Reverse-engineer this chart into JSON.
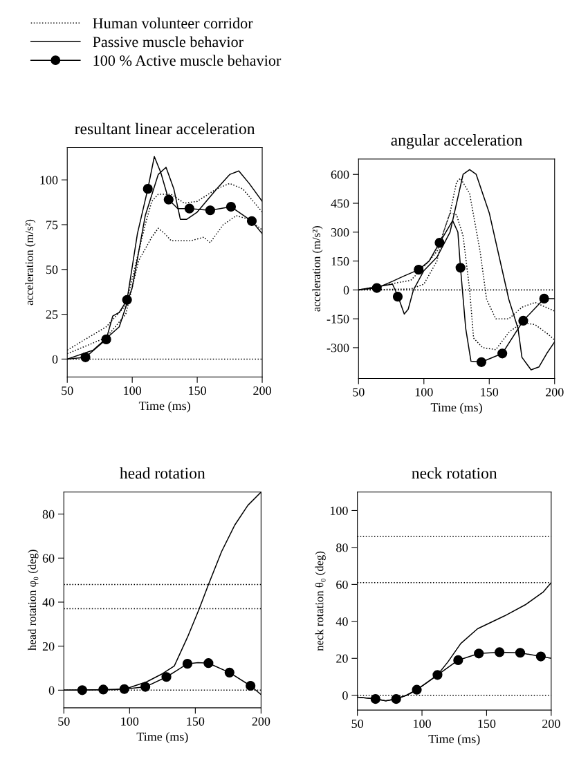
{
  "chart_data": [
    {
      "type": "line",
      "title": "resultant linear acceleration",
      "xlabel": "Time (ms)",
      "ylabel": "acceleration (m/s²)",
      "xlim": [
        50,
        200
      ],
      "xticks": [
        50,
        100,
        150,
        200
      ],
      "ylim": [
        -10,
        118
      ],
      "yticks": [
        0,
        25,
        50,
        75,
        100
      ],
      "grid": false,
      "legend": "top left",
      "ref_lines": [
        {
          "axis": "y",
          "value": 0,
          "color": "#000000",
          "line_style": "dotted"
        }
      ],
      "series": [
        {
          "name": "Human volunteer corridor",
          "color": "#000000",
          "line_style": "dotted",
          "x": [
            50,
            80,
            95,
            110,
            115,
            120,
            130,
            140,
            150,
            165,
            175,
            185,
            200
          ],
          "values": [
            5,
            18,
            30,
            75,
            88,
            92,
            92,
            87,
            88,
            95,
            98,
            95,
            82
          ]
        },
        {
          "color": "#000000",
          "line_style": "dotted",
          "x": [
            50,
            80,
            95,
            105,
            115,
            120,
            125,
            130,
            145,
            155,
            160,
            170,
            180,
            190,
            200
          ],
          "values": [
            3,
            12,
            25,
            55,
            68,
            73,
            70,
            66,
            66,
            68,
            65,
            75,
            80,
            78,
            72
          ]
        },
        {
          "name": "Passive muscle behavior",
          "color": "#000000",
          "line_style": "solid",
          "x": [
            50,
            70,
            90,
            100,
            110,
            120,
            126,
            132,
            137,
            142,
            150,
            165,
            175,
            182,
            190,
            200
          ],
          "values": [
            0,
            5,
            18,
            40,
            80,
            103,
            107,
            95,
            78,
            78,
            82,
            95,
            103,
            105,
            98,
            88
          ]
        },
        {
          "name": "100 % Active muscle behavior",
          "color": "#000000",
          "line_style": "solid",
          "x": [
            50,
            64,
            80,
            85,
            90,
            96,
            104,
            112,
            117,
            122,
            128,
            135,
            144,
            160,
            176,
            192,
            200
          ],
          "values": [
            0,
            1,
            11,
            24,
            26,
            33,
            70,
            95,
            113,
            104,
            89,
            84,
            84,
            83,
            85,
            77,
            70
          ]
        },
        {
          "type": "scatter",
          "color": "#000000",
          "marker": "circle",
          "x": [
            64,
            80,
            96,
            112,
            128,
            144,
            160,
            176,
            192
          ],
          "values": [
            1,
            11,
            33,
            95,
            89,
            84,
            83,
            85,
            77
          ]
        }
      ]
    },
    {
      "type": "line",
      "title": "angular acceleration",
      "xlabel": "Time (ms)",
      "ylabel": "acceleration (m/s²)",
      "xlim": [
        50,
        200
      ],
      "xticks": [
        50,
        100,
        150,
        200
      ],
      "ylim": [
        -460,
        680
      ],
      "yticks": [
        -300,
        -150,
        0,
        150,
        300,
        450,
        600
      ],
      "grid": false,
      "ref_lines": [
        {
          "axis": "y",
          "value": 0,
          "color": "#000000",
          "line_style": "dotted"
        }
      ],
      "series": [
        {
          "color": "#000000",
          "line_style": "dotted",
          "x": [
            50,
            90,
            100,
            110,
            120,
            125,
            128,
            135,
            143,
            148,
            155,
            165,
            175,
            185,
            200
          ],
          "values": [
            0,
            50,
            120,
            200,
            400,
            560,
            580,
            500,
            200,
            -50,
            -150,
            -150,
            -90,
            -65,
            -110
          ]
        },
        {
          "color": "#000000",
          "line_style": "dotted",
          "x": [
            50,
            90,
            100,
            110,
            115,
            120,
            125,
            130,
            135,
            138,
            145,
            155,
            165,
            175,
            185,
            195,
            200
          ],
          "values": [
            0,
            5,
            30,
            150,
            300,
            400,
            390,
            280,
            0,
            -250,
            -300,
            -310,
            -220,
            -170,
            -180,
            -230,
            -260
          ]
        },
        {
          "color": "#000000",
          "line_style": "solid",
          "x": [
            50,
            76,
            80,
            85,
            88,
            92,
            100,
            110,
            120,
            125,
            130,
            135,
            140,
            150,
            160,
            165,
            172,
            175,
            182,
            188,
            194,
            200
          ],
          "values": [
            0,
            30,
            -30,
            -125,
            -100,
            0,
            100,
            170,
            300,
            450,
            600,
            625,
            600,
            400,
            100,
            -50,
            -200,
            -350,
            -415,
            -400,
            -330,
            -270
          ]
        },
        {
          "color": "#000000",
          "line_style": "solid",
          "x": [
            50,
            64,
            76,
            84,
            96,
            104,
            112,
            122,
            126,
            128,
            132,
            136,
            144,
            160,
            176,
            192,
            200
          ],
          "values": [
            0,
            10,
            45,
            70,
            105,
            150,
            245,
            360,
            300,
            115,
            -200,
            -370,
            -375,
            -330,
            -160,
            -45,
            -45
          ]
        },
        {
          "type": "scatter",
          "color": "#000000",
          "marker": "circle",
          "x": [
            64,
            80,
            96,
            112,
            128,
            144,
            160,
            176,
            192
          ],
          "values": [
            10,
            -35,
            105,
            245,
            115,
            -375,
            -330,
            -160,
            -45
          ]
        }
      ]
    },
    {
      "type": "line",
      "title": "head rotation",
      "xlabel": "Time (ms)",
      "ylabel": "head rotation φ₀ (deg)",
      "xlim": [
        50,
        200
      ],
      "xticks": [
        50,
        100,
        150,
        200
      ],
      "ylim": [
        -8,
        90
      ],
      "yticks": [
        0,
        20,
        40,
        60,
        80
      ],
      "grid": false,
      "ref_lines": [
        {
          "axis": "y",
          "value": 0,
          "color": "#000000",
          "line_style": "dotted"
        },
        {
          "axis": "y",
          "value": 37,
          "color": "#000000",
          "line_style": "dotted"
        },
        {
          "axis": "y",
          "value": 48,
          "color": "#000000",
          "line_style": "dotted"
        }
      ],
      "series": [
        {
          "color": "#000000",
          "line_style": "solid",
          "x": [
            50,
            90,
            100,
            113,
            125,
            134,
            144,
            153,
            160,
            170,
            180,
            190,
            200
          ],
          "values": [
            0,
            0.3,
            1.2,
            3.8,
            7.5,
            11,
            24,
            37,
            48,
            63,
            75,
            84,
            90
          ]
        },
        {
          "color": "#000000",
          "line_style": "solid",
          "x": [
            50,
            64,
            80,
            96,
            112,
            128,
            144,
            152,
            160,
            176,
            192,
            200
          ],
          "values": [
            0,
            0,
            0.3,
            0.5,
            1.5,
            6,
            12,
            12.5,
            12.3,
            8,
            2,
            -2
          ]
        },
        {
          "type": "scatter",
          "color": "#000000",
          "marker": "circle",
          "x": [
            64,
            80,
            96,
            112,
            128,
            144,
            160,
            176,
            192
          ],
          "values": [
            0,
            0.3,
            0.5,
            1.5,
            6,
            12,
            12.3,
            8,
            2
          ]
        }
      ]
    },
    {
      "type": "line",
      "title": "neck rotation",
      "xlabel": "Time (ms)",
      "ylabel": "neck rotation θ₀ (deg)",
      "xlim": [
        50,
        200
      ],
      "xticks": [
        50,
        100,
        150,
        200
      ],
      "ylim": [
        -8,
        110
      ],
      "yticks": [
        0,
        20,
        40,
        60,
        80,
        100
      ],
      "grid": false,
      "ref_lines": [
        {
          "axis": "y",
          "value": 0,
          "color": "#000000",
          "line_style": "dotted"
        },
        {
          "axis": "y",
          "value": 61,
          "color": "#000000",
          "line_style": "dotted"
        },
        {
          "axis": "y",
          "value": 86,
          "color": "#000000",
          "line_style": "dotted"
        }
      ],
      "series": [
        {
          "color": "#000000",
          "line_style": "solid",
          "x": [
            50,
            64,
            72,
            80,
            88,
            96,
            104,
            112,
            120,
            130,
            143,
            164,
            180,
            194,
            200
          ],
          "values": [
            -1,
            -2,
            -3,
            -2,
            0,
            3,
            7,
            11,
            18,
            28,
            36,
            43,
            49,
            56,
            61
          ]
        },
        {
          "color": "#000000",
          "line_style": "solid",
          "x": [
            50,
            64,
            72,
            80,
            88,
            96,
            104,
            112,
            128,
            144,
            160,
            176,
            192,
            200
          ],
          "values": [
            -1,
            -2,
            -3,
            -2,
            0,
            3,
            7,
            11,
            19,
            22.6,
            23.3,
            23,
            21,
            20
          ]
        },
        {
          "type": "scatter",
          "color": "#000000",
          "marker": "circle",
          "x": [
            64,
            80,
            96,
            112,
            128,
            144,
            160,
            176,
            192
          ],
          "values": [
            -2,
            -2,
            3,
            11,
            19,
            22.6,
            23.3,
            23,
            21
          ]
        }
      ]
    }
  ]
}
